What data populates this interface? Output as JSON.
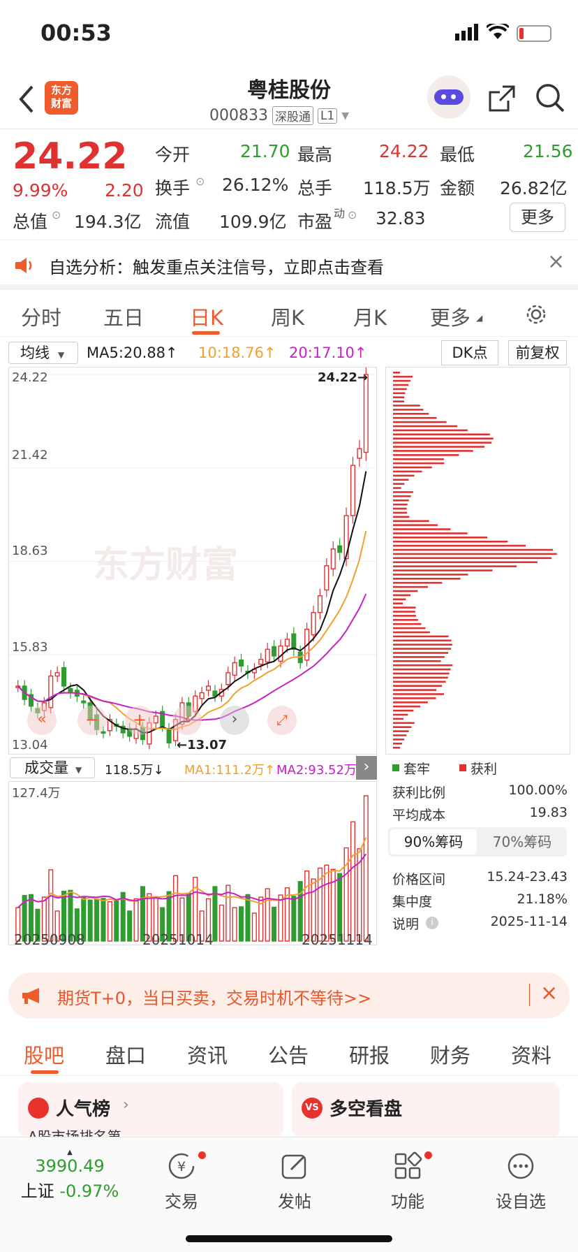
{
  "status": {
    "time": "00:53"
  },
  "header": {
    "logo": "东方\n财富",
    "title": "粤桂股份",
    "code": "000833",
    "tag1": "深股通",
    "tag2": "L1"
  },
  "quote": {
    "price": "24.22",
    "pct": "9.99%",
    "chg": "2.20",
    "open_l": "今开",
    "open": "21.70",
    "high_l": "最高",
    "high": "24.22",
    "low_l": "最低",
    "low": "21.56",
    "turn_l": "换手",
    "turn": "26.12%",
    "vol_l": "总手",
    "vol": "118.5万",
    "amt_l": "金额",
    "amt": "26.82亿",
    "mcap_l": "总值",
    "mcap": "194.3亿",
    "float_l": "流值",
    "float": "109.9亿",
    "pe_l": "市盈",
    "pe_sup": "动",
    "pe": "32.83",
    "more": "更多"
  },
  "notice": {
    "text": "自选分析：触发重点关注信号，立即点击查看",
    "close": "×"
  },
  "tabs": [
    "分时",
    "五日",
    "日K",
    "周K",
    "月K",
    "更多"
  ],
  "ma": {
    "select": "均线",
    "ma5": "MA5:20.88↑",
    "ma10": "10:18.76↑",
    "ma20": "20:17.10↑",
    "dk": "DK点",
    "fq": "前复权",
    "ma10_color": "#f0a030",
    "ma20_color": "#c81dc8"
  },
  "chart_data": {
    "type": "candlestick",
    "y_ticks": [
      "24.22",
      "21.42",
      "18.63",
      "15.83",
      "13.04"
    ],
    "ylim": [
      13.04,
      24.22
    ],
    "high_label": "24.22→",
    "low_label": "←13.07",
    "watermark": "东方财富",
    "closes": [
      14.9,
      14.5,
      14.3,
      14.1,
      14.4,
      15.2,
      15.3,
      14.9,
      14.7,
      14.6,
      14.4,
      13.9,
      13.6,
      13.5,
      13.9,
      13.7,
      13.5,
      13.4,
      13.6,
      13.3,
      13.8,
      14.0,
      13.7,
      13.2,
      13.9,
      14.4,
      14.0,
      14.6,
      14.7,
      14.9,
      14.6,
      14.8,
      15.3,
      15.6,
      15.5,
      15.3,
      15.4,
      15.7,
      16.0,
      15.8,
      16.1,
      16.3,
      16.0,
      15.6,
      16.6,
      17.1,
      17.6,
      18.5,
      19.0,
      18.9,
      20.0,
      21.5,
      22.0,
      24.22
    ],
    "ma_labels": [
      "MA5",
      "MA10",
      "MA20"
    ],
    "volume": {
      "select": "成交量",
      "value": "118.5万↓",
      "ma1": "MA1:111.2万↑",
      "ma2": "MA2:93.52万↑",
      "max_label": "127.4万",
      "dates": [
        "20250908",
        "20251014",
        "20251114"
      ]
    }
  },
  "chip": {
    "legend_a": "套牢",
    "legend_b": "获利",
    "rows": [
      [
        "获利比例",
        "100.00%"
      ],
      [
        "平均成本",
        "19.83"
      ]
    ],
    "tab1": "90%筹码",
    "tab2": "70%筹码",
    "rows2": [
      [
        "价格区间",
        "15.24-23.43"
      ],
      [
        "集中度",
        "21.18%"
      ],
      [
        "说明",
        "2025-11-14"
      ]
    ]
  },
  "promo": {
    "text": "期货T+0，当日买卖，交易时机不等待>>",
    "close": "×"
  },
  "btabs": [
    "股吧",
    "盘口",
    "资讯",
    "公告",
    "研报",
    "财务",
    "资料"
  ],
  "cards": {
    "c1": "人气榜",
    "c1_sub": "A股市场排名第",
    "c2": "多空看盘"
  },
  "nav": {
    "index": "3990.49",
    "market": "上证",
    "mchg": "-0.97%",
    "trade": "交易",
    "post": "发帖",
    "func": "功能",
    "watch": "设自选"
  }
}
